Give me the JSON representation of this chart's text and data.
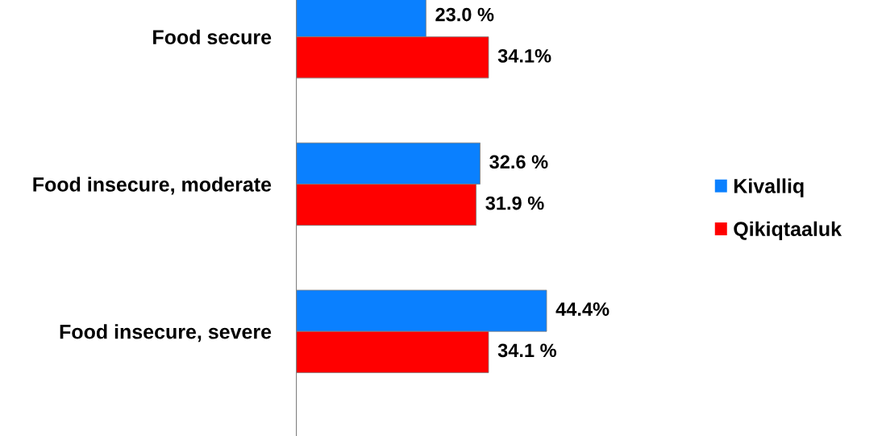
{
  "chart_data": {
    "type": "bar",
    "orientation": "horizontal",
    "categories": [
      "Food secure",
      "Food insecure, moderate",
      "Food insecure, severe"
    ],
    "series": [
      {
        "name": "Kivalliq",
        "color": "#0a80ff",
        "values": [
          23.0,
          32.6,
          44.4
        ],
        "value_labels": [
          "23.0 %",
          "32.6 %",
          "44.4%"
        ]
      },
      {
        "name": "Qikiqtaaluk",
        "color": "#ff0000",
        "values": [
          34.1,
          31.9,
          34.1
        ],
        "value_labels": [
          "34.1%",
          "31.9 %",
          "34.1 %"
        ]
      }
    ],
    "legend": "right",
    "grid": false
  }
}
